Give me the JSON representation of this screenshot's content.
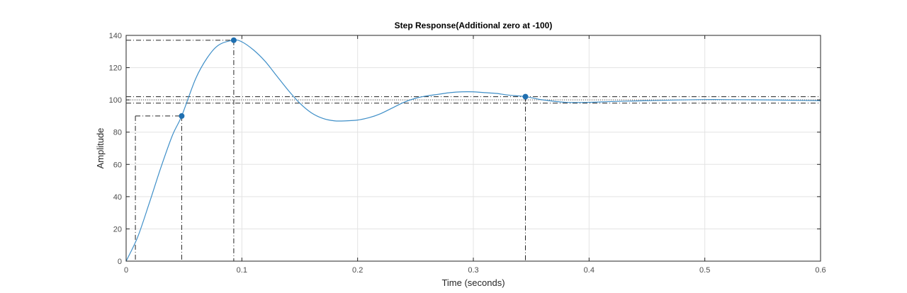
{
  "chart_data": {
    "type": "line",
    "title": "Step Response(Additional zero at -100)",
    "xlabel": "Time (seconds)",
    "ylabel": "Amplitude",
    "xlim": [
      0,
      0.6
    ],
    "ylim": [
      0,
      140
    ],
    "grid": true,
    "x_ticks": [
      "0",
      "0.1",
      "0.2",
      "0.3",
      "0.4",
      "0.5",
      "0.6"
    ],
    "y_ticks": [
      "0",
      "20",
      "40",
      "60",
      "80",
      "100",
      "120",
      "140"
    ],
    "colors": {
      "line": "#3f8fc8",
      "marker": "#1f6fb0",
      "guide": "#222222",
      "grid": "#e3e3e3",
      "axis": "#262626"
    },
    "series": [
      {
        "x": [
          0,
          0.01,
          0.02,
          0.03,
          0.04,
          0.048,
          0.06,
          0.07,
          0.08,
          0.093,
          0.1,
          0.11,
          0.12,
          0.13,
          0.14,
          0.15,
          0.16,
          0.17,
          0.18,
          0.19,
          0.2,
          0.21,
          0.22,
          0.23,
          0.24,
          0.25,
          0.26,
          0.27,
          0.28,
          0.29,
          0.3,
          0.31,
          0.32,
          0.33,
          0.345,
          0.36,
          0.38,
          0.4,
          0.42,
          0.45,
          0.5,
          0.55,
          0.6
        ],
        "y": [
          0,
          15,
          36,
          58,
          78,
          90,
          113,
          126,
          134,
          137,
          136,
          131,
          124,
          115,
          106,
          98,
          92,
          88.5,
          87,
          87,
          87.5,
          89,
          91.5,
          95,
          98.5,
          101,
          102.5,
          103.5,
          104.5,
          105,
          105,
          104.5,
          104,
          103,
          102,
          100,
          98.5,
          98.5,
          99,
          99.5,
          100.2,
          100,
          99.5
        ]
      }
    ],
    "markers": [
      {
        "x": 0.048,
        "y": 90
      },
      {
        "x": 0.093,
        "y": 137
      },
      {
        "x": 0.345,
        "y": 102
      }
    ],
    "guides": {
      "rise_start_x": 0.008,
      "rise_start_y": 10,
      "settling_band": [
        98,
        102
      ],
      "steady_state": 100
    }
  }
}
